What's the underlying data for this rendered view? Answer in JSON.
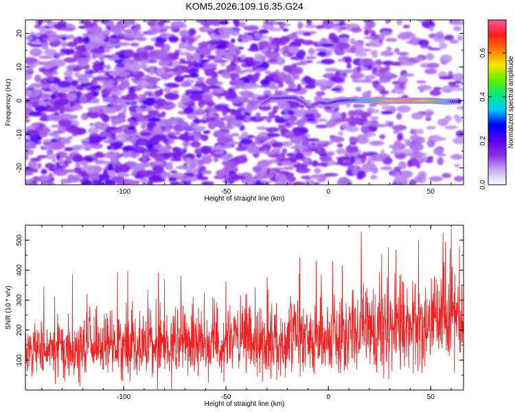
{
  "title": "KOM5.2026.109.16.35.G24",
  "chart_data": [
    {
      "type": "heatmap",
      "name": "spectrogram",
      "xlabel": "Height of straight line (km)",
      "ylabel": "Frequency (Hz)",
      "xlim": [
        -148,
        66
      ],
      "ylim": [
        -25,
        24
      ],
      "xticks": [
        -100,
        -50,
        0,
        50
      ],
      "xtick_labels": [
        "-100",
        "-50",
        "0",
        "50"
      ],
      "yticks": [
        -20,
        -10,
        0,
        10,
        20
      ],
      "ytick_labels": [
        "-20",
        "-10",
        "0",
        "10",
        "20"
      ],
      "colorbar": {
        "label": "Normalized spectral amplitude",
        "range": [
          0.0,
          0.75
        ],
        "ticks": [
          0.0,
          0.2,
          0.4,
          0.6
        ],
        "tick_labels": [
          "0.0",
          "0.2",
          "0.4",
          "0.6"
        ],
        "colors": [
          "#ffffff",
          "#c9a8f5",
          "#8a2be2",
          "#5500ff",
          "#0000ff",
          "#00c8ff",
          "#00e87a",
          "#66ee00",
          "#f4e600",
          "#ff7a00",
          "#ff1c1c",
          "#ff5aa0"
        ]
      },
      "signal_trace": {
        "description": "dominant reflected-signal frequency",
        "x": [
          -32,
          -28,
          -22,
          -16,
          -12,
          -9,
          -6,
          -4,
          0,
          6,
          12,
          20,
          30,
          40,
          50,
          57,
          64
        ],
        "freq": [
          -1.0,
          0.6,
          0.8,
          0.8,
          -0.5,
          -2.0,
          -1.0,
          -0.6,
          -0.8,
          0.0,
          0.2,
          0.1,
          0.0,
          0.0,
          0.0,
          -0.3,
          -0.2
        ],
        "amplitude": [
          0.12,
          0.2,
          0.24,
          0.24,
          0.16,
          0.14,
          0.16,
          0.2,
          0.3,
          0.26,
          0.3,
          0.38,
          0.55,
          0.6,
          0.5,
          0.38,
          0.2
        ]
      }
    },
    {
      "type": "line",
      "name": "snr",
      "xlabel": "Height of straight line (km)",
      "ylabel": "SNR (10 * v/v)",
      "color": "#ee2222",
      "xlim": [
        -148,
        66
      ],
      "ylim": [
        0,
        550
      ],
      "xticks": [
        -100,
        -50,
        0,
        50
      ],
      "xtick_labels": [
        "-100",
        "-50",
        "0",
        "50"
      ],
      "yticks": [
        100,
        200,
        300,
        400,
        500
      ],
      "ytick_labels": [
        "100",
        "200",
        "300",
        "400",
        "500"
      ],
      "envelope": {
        "x": [
          -148,
          -120,
          -100,
          -80,
          -60,
          -40,
          -20,
          0,
          20,
          40,
          60,
          66
        ],
        "mean": [
          130,
          140,
          150,
          150,
          160,
          160,
          170,
          180,
          200,
          210,
          220,
          225
        ],
        "spread": [
          80,
          80,
          85,
          90,
          90,
          90,
          100,
          105,
          110,
          115,
          120,
          120
        ]
      },
      "spikes": [
        {
          "x": -139,
          "y": 345
        },
        {
          "x": -103,
          "y": 393
        },
        {
          "x": -98,
          "y": 398
        },
        {
          "x": -83,
          "y": 392
        },
        {
          "x": -80,
          "y": 370
        },
        {
          "x": -50,
          "y": 363
        },
        {
          "x": -30,
          "y": 378
        },
        {
          "x": -14,
          "y": 442
        },
        {
          "x": -6,
          "y": 430
        },
        {
          "x": 2,
          "y": 430
        },
        {
          "x": 16,
          "y": 528
        },
        {
          "x": 26,
          "y": 452
        },
        {
          "x": 33,
          "y": 468
        },
        {
          "x": 44,
          "y": 500
        },
        {
          "x": 56,
          "y": 525
        },
        {
          "x": 60,
          "y": 540
        },
        {
          "x": 64,
          "y": 480
        }
      ]
    }
  ]
}
